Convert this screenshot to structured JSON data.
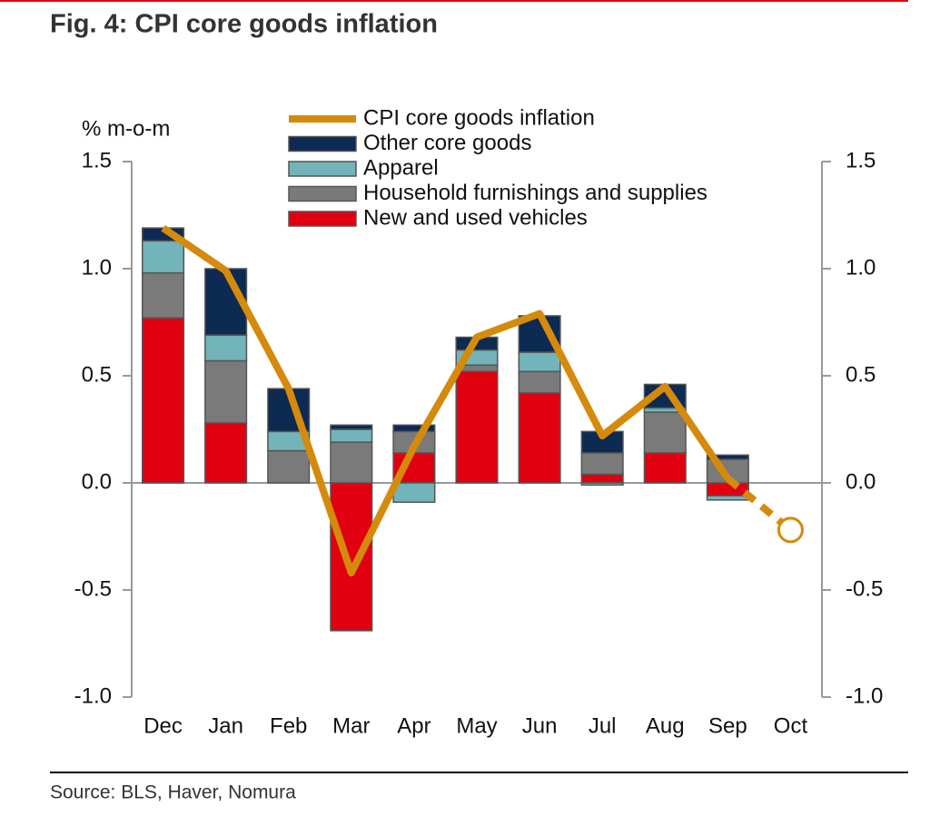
{
  "chart_data": {
    "type": "bar",
    "title": "Fig. 4: CPI core goods inflation",
    "y_label": "% m-o-m",
    "source": "Source: BLS, Haver, Nomura",
    "categories": [
      "Dec",
      "Jan",
      "Feb",
      "Mar",
      "Apr",
      "May",
      "Jun",
      "Jul",
      "Aug",
      "Sep",
      "Oct"
    ],
    "stacked": true,
    "series": [
      {
        "name": "New and used vehicles",
        "color": "#e0000f",
        "values": [
          0.77,
          0.28,
          0,
          -0.69,
          0.14,
          0.52,
          0.42,
          0.04,
          0.14,
          -0.06,
          null
        ]
      },
      {
        "name": "Household furnishings and supplies",
        "color": "#7a7a7a",
        "values": [
          0.21,
          0.29,
          0.15,
          0.19,
          0.1,
          0.03,
          0.1,
          0.1,
          0.19,
          0.11,
          null
        ]
      },
      {
        "name": "Apparel",
        "color": "#72b4b9",
        "values": [
          0.15,
          0.12,
          0.09,
          0.06,
          -0.09,
          0.07,
          0.09,
          -0.01,
          0.02,
          -0.02,
          null
        ]
      },
      {
        "name": "Other core goods",
        "color": "#0c2a52",
        "values": [
          0.06,
          0.31,
          0.2,
          0.02,
          0.03,
          0.06,
          0.17,
          0.1,
          0.11,
          0.02,
          null
        ]
      },
      {
        "name": "CPI core goods inflation",
        "type": "line",
        "color": "#d58a0c",
        "values": [
          1.19,
          0.99,
          0.44,
          -0.42,
          0.17,
          0.68,
          0.79,
          0.22,
          0.45,
          0.02,
          -0.22
        ]
      }
    ],
    "ylim": [
      -1.0,
      1.5
    ],
    "yticks": [
      {
        "value": -1.0,
        "label": "-1.0"
      },
      -0.5,
      {
        "value": 0,
        "label": "0.0"
      },
      0.5,
      {
        "value": 1.0,
        "label": "1.0"
      },
      1.5
    ]
  }
}
